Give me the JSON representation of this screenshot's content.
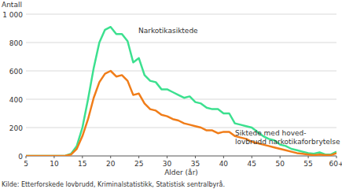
{
  "chart_data": {
    "type": "line",
    "y_label": "Antall",
    "x_label": "Alder (år)",
    "source": "Kilde: Etterforskede lovbrudd, Kriminalstatistikk, Statistisk sentralbyrå.",
    "x": [
      5,
      6,
      7,
      8,
      9,
      10,
      11,
      12,
      13,
      14,
      15,
      16,
      17,
      18,
      19,
      20,
      21,
      22,
      23,
      24,
      25,
      26,
      27,
      28,
      29,
      30,
      31,
      32,
      33,
      34,
      35,
      36,
      37,
      38,
      39,
      40,
      41,
      42,
      43,
      44,
      45,
      46,
      47,
      48,
      49,
      50,
      51,
      52,
      53,
      54,
      55,
      56,
      57,
      58,
      59,
      60
    ],
    "series": [
      {
        "name": "Narkotikasiktede",
        "color": "#3ce08f",
        "values": [
          0,
          0,
          0,
          0,
          0,
          0,
          0,
          2,
          15,
          70,
          200,
          400,
          620,
          800,
          890,
          910,
          860,
          860,
          810,
          660,
          690,
          570,
          530,
          520,
          470,
          470,
          450,
          430,
          410,
          420,
          380,
          370,
          340,
          330,
          330,
          300,
          300,
          230,
          220,
          210,
          200,
          170,
          140,
          120,
          110,
          80,
          70,
          50,
          40,
          30,
          20,
          15,
          25,
          10,
          10,
          30
        ]
      },
      {
        "name": "Siktede med hoved-\nlovbrudd narkotikaforbrytelse",
        "color": "#f07d19",
        "values": [
          0,
          0,
          0,
          0,
          0,
          0,
          0,
          1,
          10,
          50,
          140,
          260,
          410,
          520,
          580,
          600,
          560,
          570,
          530,
          430,
          440,
          370,
          330,
          320,
          290,
          280,
          260,
          250,
          230,
          220,
          210,
          200,
          180,
          180,
          160,
          170,
          170,
          140,
          130,
          120,
          100,
          90,
          80,
          70,
          60,
          50,
          40,
          30,
          20,
          15,
          10,
          5,
          10,
          5,
          5,
          20
        ]
      }
    ],
    "xlim": [
      5,
      60
    ],
    "xticks": [
      5,
      10,
      15,
      20,
      25,
      30,
      35,
      40,
      45,
      50,
      55,
      {
        "value": 60,
        "label": "60+"
      }
    ],
    "ylim": [
      0,
      1000
    ],
    "yticks": [
      0,
      200,
      400,
      600,
      800,
      {
        "value": 1000,
        "label": "1 000"
      }
    ],
    "grid": true
  }
}
